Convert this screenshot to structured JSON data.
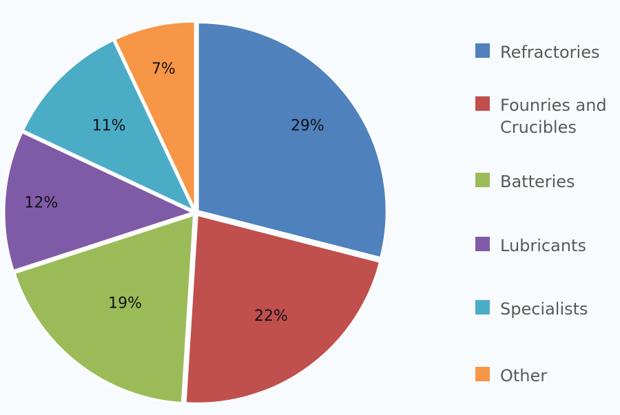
{
  "chart_data": {
    "type": "pie",
    "title": "",
    "slices": [
      {
        "name": "Refractories",
        "value": 29,
        "label": "29%",
        "color": "#4f81bd"
      },
      {
        "name": "Founries and Crucibles",
        "value": 22,
        "label": "22%",
        "color": "#c0504d"
      },
      {
        "name": "Batteries",
        "value": 19,
        "label": "19%",
        "color": "#9bbb59"
      },
      {
        "name": "Lubricants",
        "value": 12,
        "label": "12%",
        "color": "#7f5ba7"
      },
      {
        "name": "Specialists",
        "value": 11,
        "label": "11%",
        "color": "#4bacc6"
      },
      {
        "name": "Other",
        "value": 7,
        "label": "7%",
        "color": "#f79646"
      }
    ],
    "legend_position": "right",
    "legend": [
      {
        "label": "Refractories",
        "color": "#4f81bd"
      },
      {
        "label": "Founries and Crucibles",
        "color": "#c0504d"
      },
      {
        "label": "Batteries",
        "color": "#9bbb59"
      },
      {
        "label": "Lubricants",
        "color": "#7f5ba7"
      },
      {
        "label": "Specialists",
        "color": "#4bacc6"
      },
      {
        "label": "Other",
        "color": "#f79646"
      }
    ]
  }
}
